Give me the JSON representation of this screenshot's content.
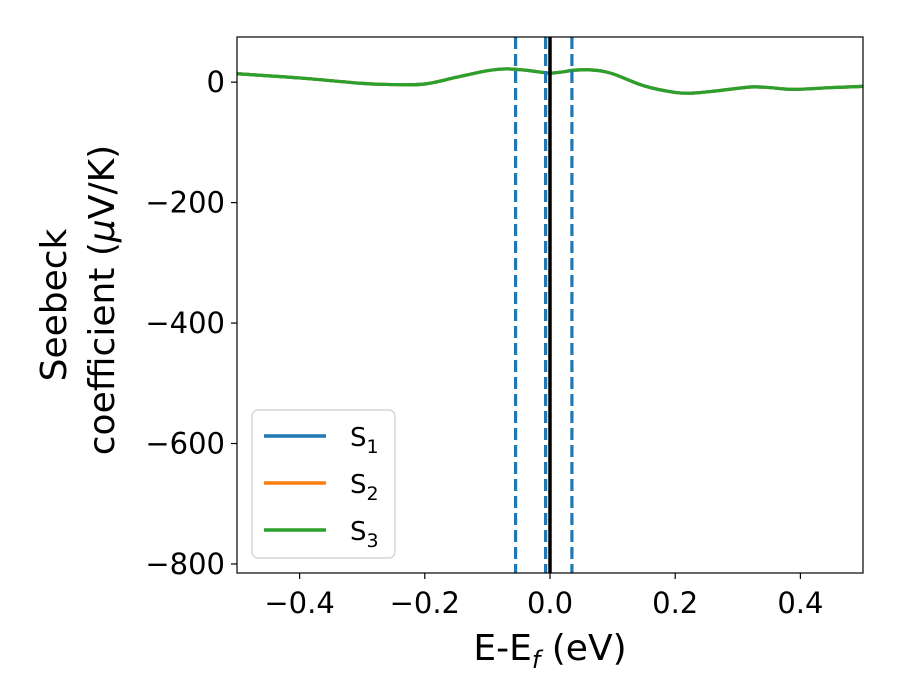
{
  "chart_data": {
    "type": "line",
    "xlabel": {
      "main": "E-E",
      "sub": "f",
      "suffix": " (eV)"
    },
    "ylabel": {
      "line1": "Seebeck",
      "line2": "coefficient  (",
      "mu": "μ",
      "line2_end": "V/K)"
    },
    "xlim": [
      -0.5,
      0.5
    ],
    "ylim": [
      -815,
      75
    ],
    "xticks": [
      -0.4,
      -0.2,
      0.0,
      0.2,
      0.4
    ],
    "xtick_labels": [
      "−0.4",
      "−0.2",
      "0.0",
      "0.2",
      "0.4"
    ],
    "yticks": [
      0,
      -200,
      -400,
      -600,
      -800
    ],
    "ytick_labels": [
      "0",
      "−200",
      "−400",
      "−600",
      "−800"
    ],
    "grid": false,
    "legend_position": "lower-left",
    "series": [
      {
        "name": "S1",
        "base": "S",
        "sub": "1",
        "color": "#1f77b4",
        "x": [
          -0.5,
          -0.4,
          -0.3,
          -0.25,
          -0.2,
          -0.15,
          -0.1,
          -0.07,
          -0.04,
          -0.01,
          0.0,
          0.02,
          0.04,
          0.07,
          0.1,
          0.15,
          0.2,
          0.23,
          0.27,
          0.32,
          0.35,
          0.39,
          0.45,
          0.5
        ],
        "y": [
          14,
          7,
          -2,
          -4,
          -3,
          8,
          19,
          22,
          20,
          16,
          15,
          17,
          20,
          20,
          14,
          -6,
          -17,
          -18,
          -14,
          -8,
          -9,
          -12,
          -9,
          -7
        ]
      },
      {
        "name": "S2",
        "base": "S",
        "sub": "2",
        "color": "#ff7f0e",
        "x": [
          -0.5,
          -0.4,
          -0.3,
          -0.25,
          -0.2,
          -0.15,
          -0.1,
          -0.07,
          -0.04,
          -0.01,
          0.0,
          0.02,
          0.04,
          0.07,
          0.1,
          0.15,
          0.2,
          0.23,
          0.27,
          0.32,
          0.35,
          0.39,
          0.45,
          0.5
        ],
        "y": [
          14,
          7,
          -2,
          -4,
          -3,
          8,
          19,
          22,
          20,
          16,
          15,
          17,
          20,
          20,
          14,
          -6,
          -17,
          -18,
          -14,
          -8,
          -9,
          -12,
          -9,
          -7
        ]
      },
      {
        "name": "S3",
        "base": "S",
        "sub": "3",
        "color": "#2ca02c",
        "x": [
          -0.5,
          -0.4,
          -0.3,
          -0.25,
          -0.2,
          -0.15,
          -0.1,
          -0.07,
          -0.04,
          -0.01,
          0.0,
          0.02,
          0.04,
          0.07,
          0.1,
          0.15,
          0.2,
          0.23,
          0.27,
          0.32,
          0.35,
          0.39,
          0.45,
          0.5
        ],
        "y": [
          14,
          7,
          -2,
          -4,
          -3,
          8,
          19,
          22,
          20,
          16,
          15,
          17,
          20,
          20,
          14,
          -6,
          -17,
          -18,
          -14,
          -8,
          -9,
          -12,
          -9,
          -7
        ]
      }
    ],
    "vlines": [
      {
        "x": -0.055,
        "style": "dashed",
        "color": "#1f77b4"
      },
      {
        "x": -0.007,
        "style": "dashed",
        "color": "#1f77b4"
      },
      {
        "x": 0.0,
        "style": "solid",
        "color": "#000000"
      },
      {
        "x": 0.035,
        "style": "dashed",
        "color": "#1f77b4"
      }
    ]
  }
}
